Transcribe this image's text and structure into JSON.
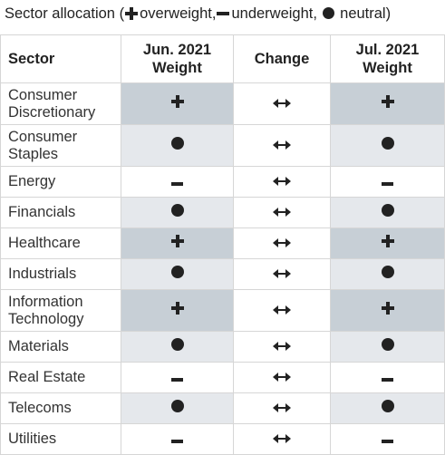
{
  "title": {
    "prefix": "Sector allocation (",
    "overweight": "overweight,",
    "underweight": "underweight,",
    "neutral": "neutral)"
  },
  "table": {
    "headers": {
      "sector": "Sector",
      "jun_line1": "Jun. 2021",
      "jun_line2": "Weight",
      "change": "Change",
      "jul_line1": "Jul. 2021",
      "jul_line2": "Weight"
    },
    "rows": [
      {
        "line1": "Consumer",
        "line2": "Discretionary",
        "jun": "overweight",
        "change": "unchanged",
        "jul": "overweight"
      },
      {
        "line1": "Consumer",
        "line2": "Staples",
        "jun": "neutral",
        "change": "unchanged",
        "jul": "neutral"
      },
      {
        "line1": "Energy",
        "line2": "",
        "jun": "underweight",
        "change": "unchanged",
        "jul": "underweight"
      },
      {
        "line1": "Financials",
        "line2": "",
        "jun": "neutral",
        "change": "unchanged",
        "jul": "neutral"
      },
      {
        "line1": "Healthcare",
        "line2": "",
        "jun": "overweight",
        "change": "unchanged",
        "jul": "overweight"
      },
      {
        "line1": "Industrials",
        "line2": "",
        "jun": "neutral",
        "change": "unchanged",
        "jul": "neutral"
      },
      {
        "line1": "Information",
        "line2": "Technology",
        "jun": "overweight",
        "change": "unchanged",
        "jul": "overweight"
      },
      {
        "line1": "Materials",
        "line2": "",
        "jun": "neutral",
        "change": "unchanged",
        "jul": "neutral"
      },
      {
        "line1": "Real Estate",
        "line2": "",
        "jun": "underweight",
        "change": "unchanged",
        "jul": "underweight"
      },
      {
        "line1": "Telecoms",
        "line2": "",
        "jun": "neutral",
        "change": "unchanged",
        "jul": "neutral"
      },
      {
        "line1": "Utilities",
        "line2": "",
        "jun": "underweight",
        "change": "unchanged",
        "jul": "underweight"
      }
    ]
  },
  "colors": {
    "overweight_cell": "#c7cfd6",
    "neutral_cell": "#e5e8ec",
    "underweight_cell": "#ffffff",
    "border": "#d6d6d6",
    "text": "#222222"
  },
  "icons": {
    "overweight": "plus-icon",
    "underweight": "minus-icon",
    "neutral": "dot-icon",
    "unchanged": "double-arrow-icon"
  }
}
